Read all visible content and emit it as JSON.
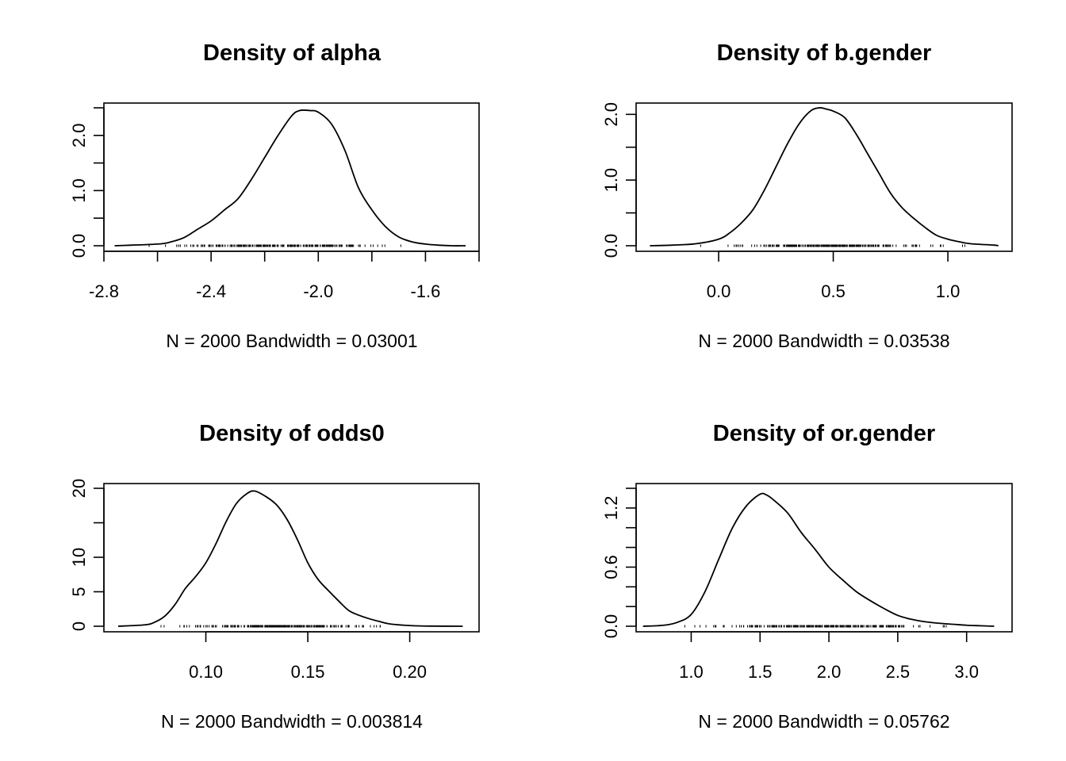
{
  "chart_data": [
    {
      "type": "line",
      "title": "Density of alpha",
      "xlabel": "N = 2000   Bandwidth = 0.03001",
      "ylabel": "",
      "xlim": [
        -2.8,
        -1.4
      ],
      "ylim": [
        0,
        2.5
      ],
      "x_ticks": [
        -2.8,
        -2.6,
        -2.4,
        -2.2,
        -2.0,
        -1.8,
        -1.6,
        -1.4
      ],
      "x_tick_labels": [
        "-2.8",
        "",
        "-2.4",
        "",
        "-2.0",
        "",
        "-1.6",
        ""
      ],
      "y_ticks": [
        0,
        0.5,
        1.0,
        1.5,
        2.0,
        2.5
      ],
      "y_tick_labels": [
        "0.0",
        "",
        "1.0",
        "",
        "2.0",
        ""
      ],
      "grid": false,
      "rug": true,
      "rug_range": [
        -2.7,
        -1.6
      ],
      "series": [
        {
          "x": [
            -2.76,
            -2.6,
            -2.55,
            -2.5,
            -2.45,
            -2.4,
            -2.35,
            -2.3,
            -2.25,
            -2.2,
            -2.15,
            -2.1,
            -2.07,
            -2.03,
            -2.0,
            -1.95,
            -1.9,
            -1.85,
            -1.8,
            -1.75,
            -1.7,
            -1.65,
            -1.6,
            -1.55,
            -1.5,
            -1.45
          ],
          "y": [
            0.0,
            0.03,
            0.07,
            0.15,
            0.3,
            0.45,
            0.65,
            0.85,
            1.2,
            1.6,
            2.0,
            2.35,
            2.45,
            2.45,
            2.42,
            2.2,
            1.72,
            1.05,
            0.65,
            0.35,
            0.16,
            0.07,
            0.03,
            0.01,
            0.0,
            0.0
          ]
        }
      ]
    },
    {
      "type": "line",
      "title": "Density of b.gender",
      "xlabel": "N = 2000   Bandwidth = 0.03538",
      "ylabel": "",
      "xlim": [
        -0.36,
        1.28
      ],
      "ylim": [
        0,
        2.1
      ],
      "x_ticks": [
        0.0,
        0.5,
        1.0
      ],
      "x_tick_labels": [
        "0.0",
        "0.5",
        "1.0"
      ],
      "y_ticks": [
        0,
        0.5,
        1.0,
        1.5,
        2.0
      ],
      "y_tick_labels": [
        "0.0",
        "",
        "1.0",
        "",
        "2.0"
      ],
      "grid": false,
      "rug": true,
      "rug_range": [
        -0.1,
        1.12
      ],
      "series": [
        {
          "x": [
            -0.3,
            -0.2,
            -0.1,
            0.0,
            0.05,
            0.1,
            0.15,
            0.2,
            0.25,
            0.3,
            0.35,
            0.4,
            0.44,
            0.47,
            0.5,
            0.55,
            0.6,
            0.65,
            0.7,
            0.75,
            0.8,
            0.85,
            0.9,
            0.95,
            1.0,
            1.05,
            1.1,
            1.2,
            1.22
          ],
          "y": [
            0.0,
            0.01,
            0.03,
            0.1,
            0.2,
            0.35,
            0.55,
            0.85,
            1.2,
            1.55,
            1.85,
            2.05,
            2.1,
            2.08,
            2.05,
            1.95,
            1.7,
            1.4,
            1.1,
            0.8,
            0.58,
            0.42,
            0.28,
            0.16,
            0.1,
            0.06,
            0.03,
            0.01,
            0.0
          ]
        }
      ]
    },
    {
      "type": "line",
      "title": "Density of odds0",
      "xlabel": "N = 2000   Bandwidth = 0.003814",
      "ylabel": "",
      "xlim": [
        0.05,
        0.234
      ],
      "ylim": [
        0,
        20
      ],
      "x_ticks": [
        0.1,
        0.15,
        0.2
      ],
      "x_tick_labels": [
        "0.10",
        "0.15",
        "0.20"
      ],
      "y_ticks": [
        0,
        5,
        10,
        15,
        20
      ],
      "y_tick_labels": [
        "0",
        "5",
        "10",
        "",
        "20"
      ],
      "grid": false,
      "rug": true,
      "rug_range": [
        0.07,
        0.2
      ],
      "series": [
        {
          "x": [
            0.057,
            0.07,
            0.075,
            0.08,
            0.085,
            0.09,
            0.095,
            0.1,
            0.105,
            0.11,
            0.115,
            0.12,
            0.124,
            0.13,
            0.135,
            0.14,
            0.145,
            0.15,
            0.155,
            0.16,
            0.165,
            0.17,
            0.175,
            0.18,
            0.185,
            0.19,
            0.2,
            0.21,
            0.226
          ],
          "y": [
            0.0,
            0.2,
            0.6,
            1.5,
            3.2,
            5.5,
            7.2,
            9.2,
            12.0,
            15.2,
            17.8,
            19.2,
            19.6,
            18.7,
            17.5,
            15.4,
            12.5,
            9.2,
            6.8,
            5.2,
            3.7,
            2.3,
            1.6,
            1.1,
            0.7,
            0.35,
            0.1,
            0.02,
            0.0
          ]
        }
      ]
    },
    {
      "type": "line",
      "title": "Density of or.gender",
      "xlabel": "N = 2000   Bandwidth = 0.05762",
      "ylabel": "",
      "xlim": [
        0.6,
        3.33
      ],
      "ylim": [
        0,
        1.4
      ],
      "x_ticks": [
        1.0,
        1.5,
        2.0,
        2.5,
        3.0
      ],
      "x_tick_labels": [
        "1.0",
        "1.5",
        "2.0",
        "2.5",
        "3.0"
      ],
      "y_ticks": [
        0,
        0.2,
        0.4,
        0.6,
        0.8,
        1.0,
        1.2,
        1.4
      ],
      "y_tick_labels": [
        "0.0",
        "",
        "",
        "0.6",
        "",
        "",
        "1.2",
        ""
      ],
      "grid": false,
      "rug": true,
      "rug_range": [
        0.9,
        3.05
      ],
      "series": [
        {
          "x": [
            0.65,
            0.8,
            0.9,
            1.0,
            1.1,
            1.2,
            1.3,
            1.4,
            1.5,
            1.55,
            1.6,
            1.7,
            1.8,
            1.9,
            2.0,
            2.1,
            2.2,
            2.3,
            2.4,
            2.5,
            2.6,
            2.7,
            2.8,
            2.9,
            3.0,
            3.1,
            3.2
          ],
          "y": [
            0.0,
            0.01,
            0.04,
            0.12,
            0.35,
            0.68,
            1.0,
            1.22,
            1.34,
            1.33,
            1.28,
            1.15,
            0.95,
            0.78,
            0.6,
            0.47,
            0.35,
            0.26,
            0.18,
            0.11,
            0.07,
            0.045,
            0.03,
            0.02,
            0.01,
            0.005,
            0.0
          ]
        }
      ]
    }
  ]
}
